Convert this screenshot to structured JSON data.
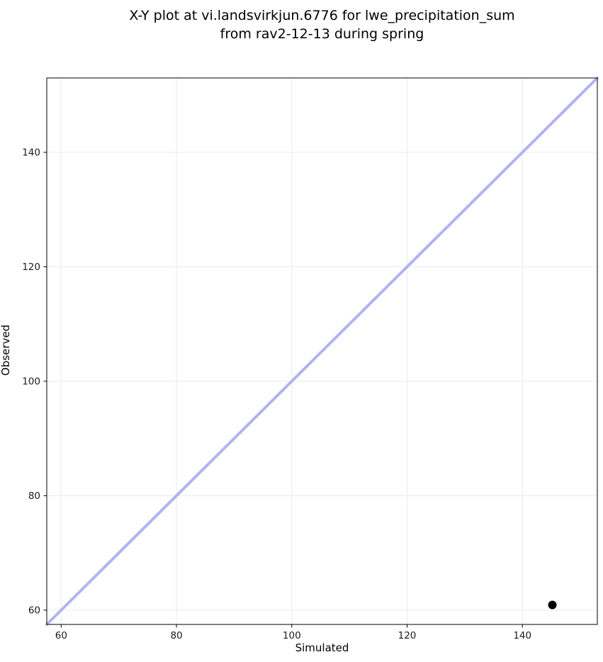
{
  "figure": {
    "title_line1": "X-Y plot at vi.landsvirkjun.6776 for lwe_precipitation_sum",
    "title_line2": "from rav2-12-13 during spring",
    "xlabel": "Simulated",
    "ylabel": "Observed"
  },
  "chart_data": {
    "type": "scatter",
    "title": "X-Y plot at vi.landsvirkjun.6776 for lwe_precipitation_sum\nfrom rav2-12-13 during spring",
    "xlabel": "Simulated",
    "ylabel": "Observed",
    "xlim": [
      57.5,
      153.0
    ],
    "ylim": [
      57.5,
      153.0
    ],
    "xticks": [
      60,
      80,
      100,
      120,
      140
    ],
    "yticks": [
      60,
      80,
      100,
      120,
      140
    ],
    "grid": true,
    "legend": "none",
    "series": [
      {
        "name": "observed-vs-simulated",
        "marker": "circle",
        "points": [
          {
            "x": 145.2,
            "y": 60.9
          }
        ]
      }
    ],
    "identity_line": {
      "from": [
        57.5,
        57.5
      ],
      "to": [
        153.0,
        153.0
      ]
    },
    "colors": {
      "identity_line": "#b2b2f2",
      "point": "#000000",
      "grid": "#ededed",
      "spine": "#000000",
      "background": "#ffffff"
    }
  }
}
